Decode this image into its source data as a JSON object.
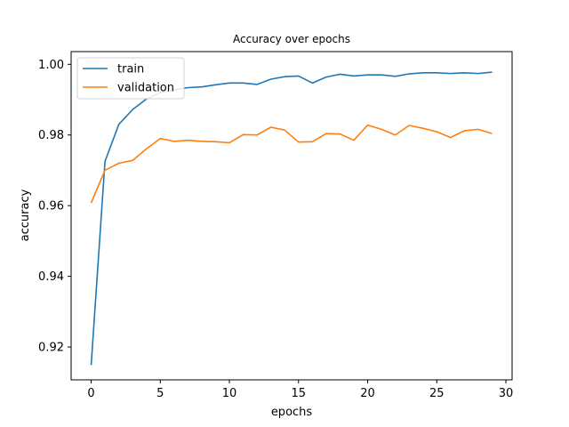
{
  "chart_data": {
    "type": "line",
    "title": "Accuracy over epochs",
    "xlabel": "epochs",
    "ylabel": "accuracy",
    "xlim": [
      -1.45,
      30.45
    ],
    "ylim": [
      0.9107,
      1.0036
    ],
    "xticks": [
      0,
      5,
      10,
      15,
      20,
      25,
      30
    ],
    "yticks": [
      0.92,
      0.94,
      0.96,
      0.98,
      1.0
    ],
    "ytick_labels": [
      "0.92",
      "0.94",
      "0.96",
      "0.98",
      "1.00"
    ],
    "grid": false,
    "legend_position": "top-left",
    "x": [
      0,
      1,
      2,
      3,
      4,
      5,
      6,
      7,
      8,
      9,
      10,
      11,
      12,
      13,
      14,
      15,
      16,
      17,
      18,
      19,
      20,
      21,
      22,
      23,
      24,
      25,
      26,
      27,
      28,
      29
    ],
    "series": [
      {
        "name": "train",
        "color": "#1f77b4",
        "values": [
          0.9149,
          0.9725,
          0.983,
          0.9872,
          0.9902,
          0.992,
          0.9928,
          0.9934,
          0.9936,
          0.9942,
          0.9947,
          0.9947,
          0.9943,
          0.9958,
          0.9965,
          0.9967,
          0.9947,
          0.9964,
          0.9972,
          0.9967,
          0.997,
          0.997,
          0.9966,
          0.9973,
          0.9976,
          0.9976,
          0.9974,
          0.9976,
          0.9974,
          0.9978
        ]
      },
      {
        "name": "validation",
        "color": "#ff7f0e",
        "values": [
          0.9608,
          0.97,
          0.972,
          0.9728,
          0.9761,
          0.979,
          0.9782,
          0.9785,
          0.9782,
          0.9781,
          0.9778,
          0.9801,
          0.98,
          0.9822,
          0.9814,
          0.978,
          0.9781,
          0.9804,
          0.9803,
          0.9785,
          0.9828,
          0.9816,
          0.98,
          0.9827,
          0.9819,
          0.9809,
          0.9793,
          0.9812,
          0.9816,
          0.9804
        ]
      }
    ]
  }
}
